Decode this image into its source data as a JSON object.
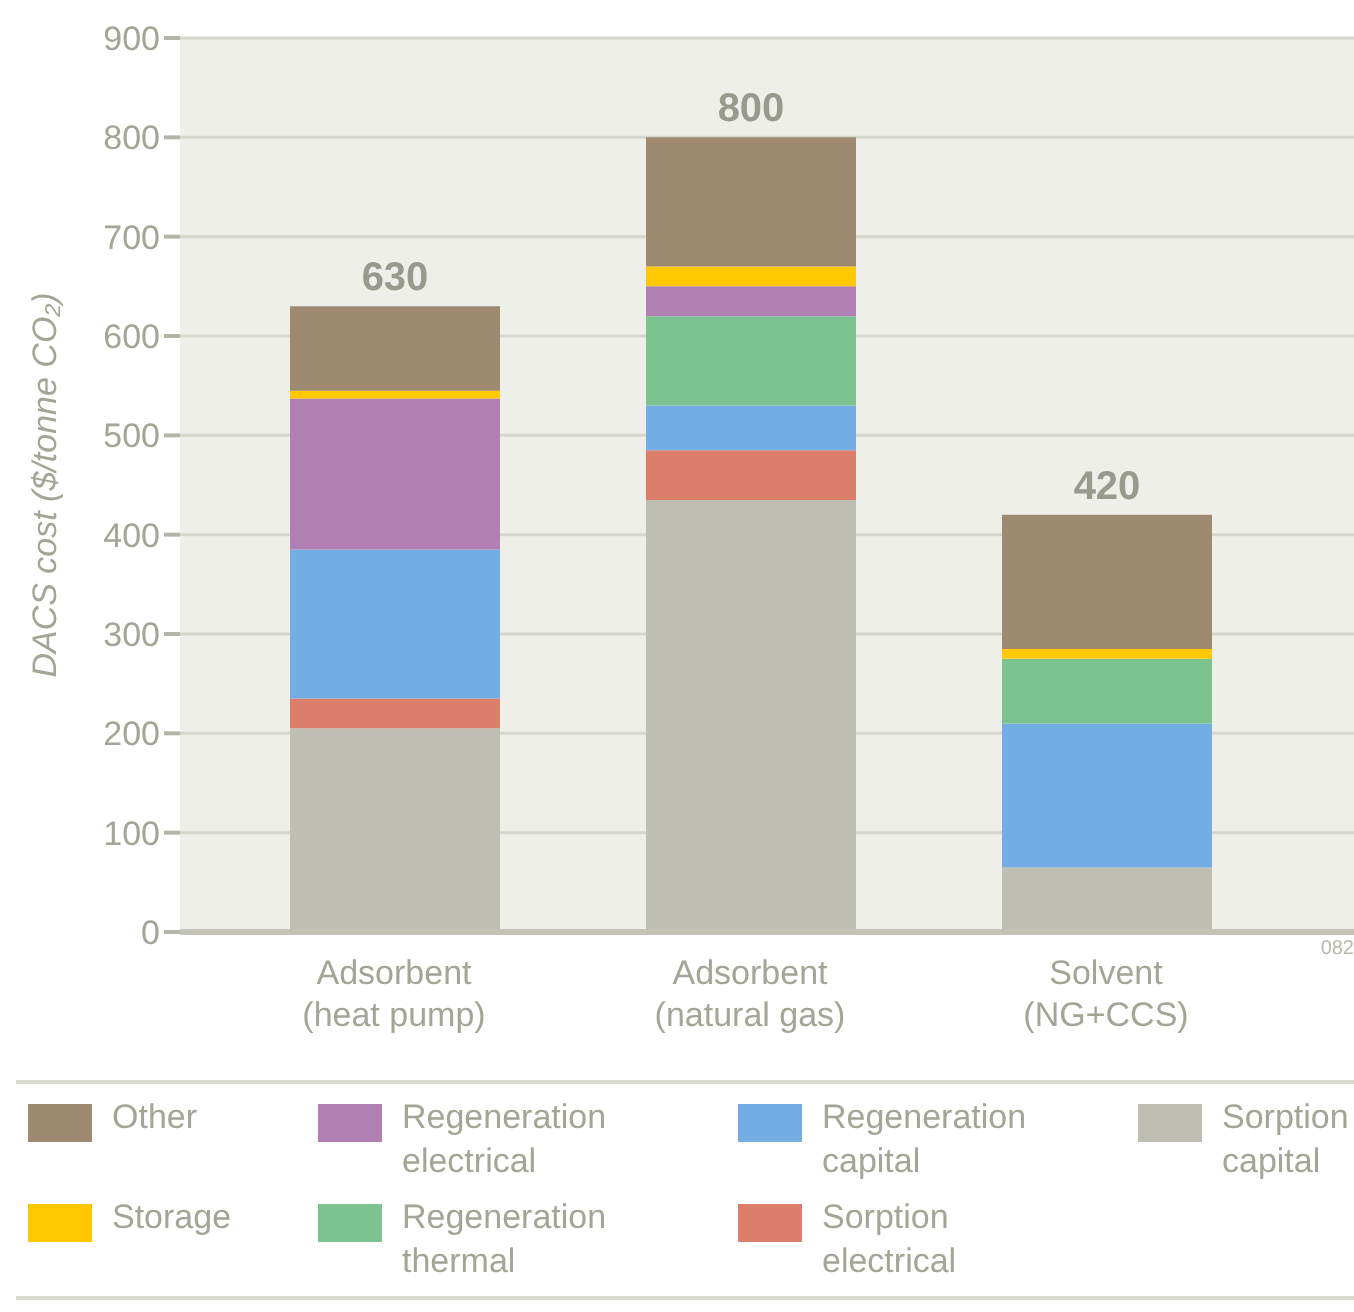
{
  "chart_data": {
    "type": "bar",
    "stacked": true,
    "ylabel": "DACS cost ($/tonne CO₂)",
    "categories": [
      "Adsorbent (heat pump)",
      "Adsorbent (natural gas)",
      "Solvent (NG+CCS)"
    ],
    "series": [
      {
        "name": "Sorption capital",
        "color": "#bebfb2",
        "values": [
          205,
          435,
          65
        ]
      },
      {
        "name": "Sorption electrical",
        "color": "#dc7f6a",
        "values": [
          30,
          50,
          0
        ]
      },
      {
        "name": "Regeneration capital",
        "color": "#74ace4",
        "values": [
          150,
          45,
          145
        ]
      },
      {
        "name": "Regeneration thermal",
        "color": "#7cc38f",
        "values": [
          0,
          90,
          65
        ]
      },
      {
        "name": "Regeneration electrical",
        "color": "#af80b1",
        "values": [
          152,
          30,
          0
        ]
      },
      {
        "name": "Storage",
        "color": "#ffc800",
        "values": [
          8,
          20,
          10
        ]
      },
      {
        "name": "Other",
        "color": "#9e8a71",
        "values": [
          85,
          130,
          135
        ]
      }
    ],
    "totals": [
      "630",
      "800",
      "420"
    ],
    "ylim": [
      0,
      900
    ],
    "yticks": [
      0,
      100,
      200,
      300,
      400,
      500,
      600,
      700,
      800,
      900
    ],
    "grid": "y",
    "legend": "bottom",
    "annotations": [
      "082"
    ]
  }
}
